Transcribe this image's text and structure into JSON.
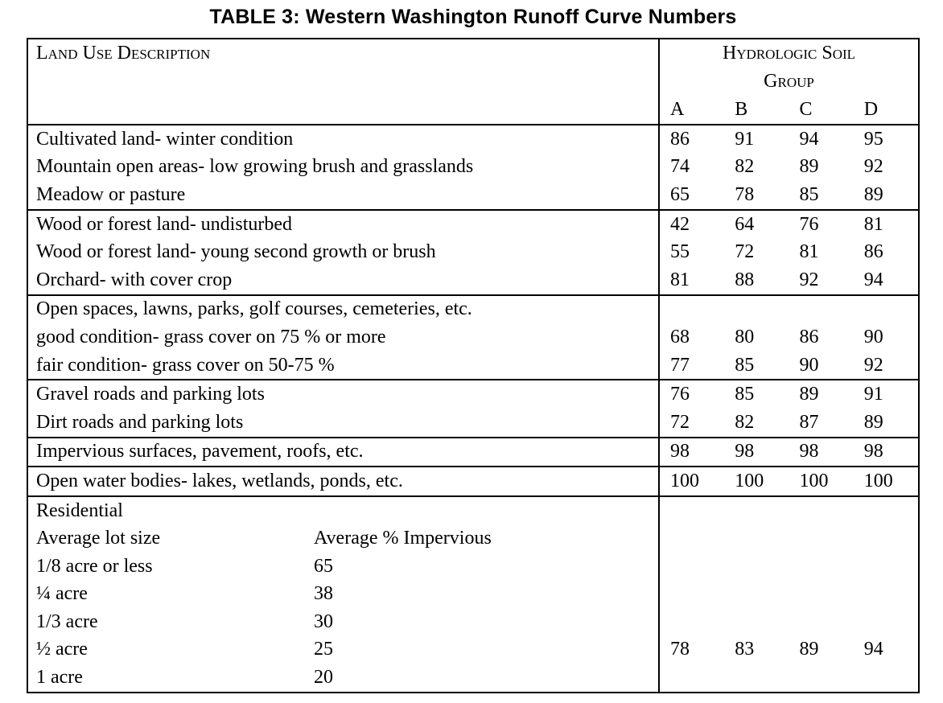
{
  "page": {
    "title": "TABLE 3: Western Washington Runoff Curve Numbers"
  },
  "table": {
    "header": {
      "land_use_label": "Land Use Description",
      "soil_group_title": "Hydrologic Soil",
      "soil_group_subtitle": "Group",
      "columns": [
        "A",
        "B",
        "C",
        "D"
      ]
    },
    "sections": [
      {
        "rows": [
          {
            "label": "Cultivated land- winter condition",
            "values": [
              "86",
              "91",
              "94",
              "95"
            ]
          },
          {
            "label": "Mountain open areas- low growing brush and grasslands",
            "values": [
              "74",
              "82",
              "89",
              "92"
            ]
          },
          {
            "label": "Meadow or pasture",
            "values": [
              "65",
              "78",
              "85",
              "89"
            ]
          }
        ]
      },
      {
        "rows": [
          {
            "label": "Wood or forest land- undisturbed",
            "values": [
              "42",
              "64",
              "76",
              "81"
            ]
          },
          {
            "label": "Wood or forest land- young second growth or brush",
            "values": [
              "55",
              "72",
              "81",
              "86"
            ]
          },
          {
            "label": "Orchard- with cover crop",
            "values": [
              "81",
              "88",
              "92",
              "94"
            ]
          }
        ]
      },
      {
        "rows": [
          {
            "label": "Open spaces, lawns, parks, golf courses, cemeteries, etc.",
            "values": [
              "",
              "",
              "",
              ""
            ]
          },
          {
            "label": "good condition- grass cover on 75 % or more",
            "values": [
              "68",
              "80",
              "86",
              "90"
            ]
          },
          {
            "label": "fair condition- grass cover on 50-75 %",
            "values": [
              "77",
              "85",
              "90",
              "92"
            ]
          }
        ]
      },
      {
        "rows": [
          {
            "label": "Gravel roads and parking lots",
            "values": [
              "76",
              "85",
              "89",
              "91"
            ]
          },
          {
            "label": "Dirt roads and parking lots",
            "values": [
              "72",
              "82",
              "87",
              "89"
            ]
          }
        ]
      },
      {
        "rows": [
          {
            "label": "Impervious surfaces, pavement, roofs, etc.",
            "values": [
              "98",
              "98",
              "98",
              "98"
            ]
          }
        ]
      },
      {
        "rows": [
          {
            "label": "Open water bodies- lakes, wetlands, ponds, etc.",
            "values": [
              "100",
              "100",
              "100",
              "100"
            ]
          }
        ]
      }
    ],
    "residential": {
      "label": "Residential",
      "lot_header": "Average lot size",
      "impervious_header": "Average % Impervious",
      "rows": [
        {
          "lot": "1/8 acre or less",
          "impervious": "65",
          "values": [
            "",
            "",
            "",
            ""
          ]
        },
        {
          "lot": "¼ acre",
          "impervious": "38",
          "values": [
            "",
            "",
            "",
            ""
          ]
        },
        {
          "lot": "1/3 acre",
          "impervious": "30",
          "values": [
            "",
            "",
            "",
            ""
          ]
        },
        {
          "lot": "½ acre",
          "impervious": "25",
          "values": [
            "78",
            "83",
            "89",
            "94"
          ]
        },
        {
          "lot": "1 acre",
          "impervious": "20",
          "values": [
            "",
            "",
            "",
            ""
          ]
        }
      ]
    }
  }
}
